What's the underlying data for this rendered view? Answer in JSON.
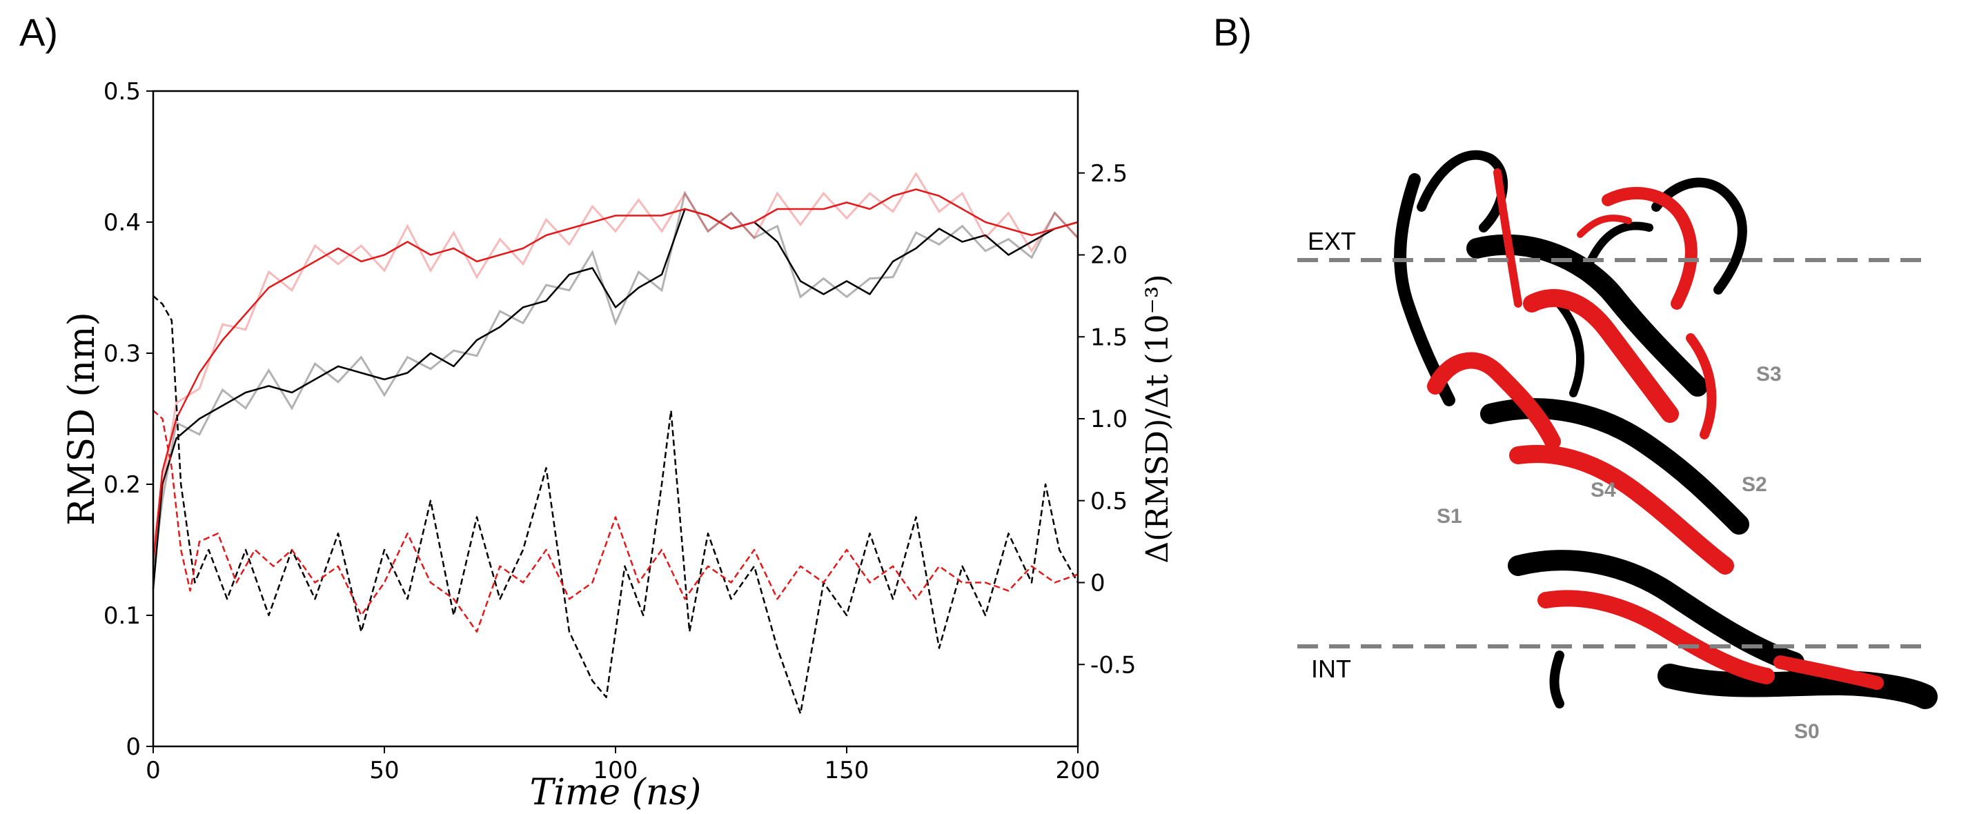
{
  "panels": {
    "a_label": "A)",
    "b_label": "B)"
  },
  "chart_data": {
    "type": "line",
    "xlabel": "Time (ns)",
    "ylabel_left": "RMSD (nm)",
    "ylabel_right": "Δ(RMSD)/Δt (10⁻³)",
    "xlim": [
      0,
      200
    ],
    "ylim_left": [
      0,
      0.5
    ],
    "ylim_right": [
      -1.0,
      3.0
    ],
    "xticks": [
      "0",
      "50",
      "100",
      "150",
      "200"
    ],
    "yticks_left": [
      "0",
      "0.1",
      "0.2",
      "0.3",
      "0.4",
      "0.5"
    ],
    "yticks_right": [
      "-0.5",
      "0",
      "0.5",
      "1.0",
      "1.5",
      "2.0",
      "2.5"
    ],
    "colors": {
      "black_series": "#000000",
      "red_series": "#e31a1c"
    },
    "series": [
      {
        "name": "RMSD (black)",
        "axis": "left",
        "style": "solid",
        "x": [
          0,
          2,
          5,
          10,
          15,
          20,
          25,
          30,
          35,
          40,
          45,
          50,
          55,
          60,
          65,
          70,
          75,
          80,
          85,
          90,
          95,
          100,
          105,
          110,
          115,
          120,
          125,
          130,
          135,
          140,
          145,
          150,
          155,
          160,
          165,
          170,
          175,
          180,
          185,
          190,
          195,
          200
        ],
        "y": [
          0.12,
          0.2,
          0.235,
          0.25,
          0.26,
          0.27,
          0.275,
          0.27,
          0.28,
          0.29,
          0.285,
          0.28,
          0.285,
          0.3,
          0.29,
          0.31,
          0.32,
          0.335,
          0.34,
          0.36,
          0.365,
          0.335,
          0.35,
          0.36,
          0.41,
          0.405,
          0.395,
          0.4,
          0.385,
          0.355,
          0.345,
          0.355,
          0.345,
          0.37,
          0.38,
          0.395,
          0.385,
          0.39,
          0.375,
          0.385,
          0.395,
          0.4
        ]
      },
      {
        "name": "RMSD (red)",
        "axis": "left",
        "style": "solid",
        "x": [
          0,
          2,
          5,
          10,
          15,
          20,
          25,
          30,
          35,
          40,
          45,
          50,
          55,
          60,
          65,
          70,
          75,
          80,
          85,
          90,
          95,
          100,
          105,
          110,
          115,
          120,
          125,
          130,
          135,
          140,
          145,
          150,
          155,
          160,
          165,
          170,
          175,
          180,
          185,
          190,
          195,
          200
        ],
        "y": [
          0.14,
          0.21,
          0.25,
          0.285,
          0.31,
          0.33,
          0.35,
          0.36,
          0.37,
          0.38,
          0.37,
          0.375,
          0.385,
          0.375,
          0.38,
          0.37,
          0.375,
          0.38,
          0.39,
          0.395,
          0.4,
          0.405,
          0.405,
          0.405,
          0.41,
          0.405,
          0.395,
          0.4,
          0.41,
          0.41,
          0.41,
          0.415,
          0.41,
          0.42,
          0.425,
          0.42,
          0.41,
          0.4,
          0.395,
          0.39,
          0.395,
          0.4
        ]
      },
      {
        "name": "Derivative (black)",
        "axis": "right",
        "style": "dashed",
        "x": [
          0,
          2,
          4,
          6,
          9,
          12,
          16,
          20,
          25,
          30,
          35,
          40,
          45,
          50,
          55,
          60,
          65,
          70,
          75,
          80,
          85,
          90,
          95,
          98,
          102,
          106,
          110,
          112,
          116,
          120,
          125,
          130,
          135,
          140,
          145,
          150,
          155,
          160,
          165,
          170,
          175,
          180,
          185,
          190,
          193,
          196,
          200
        ],
        "y": [
          1.75,
          1.7,
          1.6,
          0.6,
          0.0,
          0.2,
          -0.1,
          0.2,
          -0.2,
          0.2,
          -0.1,
          0.3,
          -0.3,
          0.2,
          -0.1,
          0.5,
          -0.2,
          0.4,
          -0.1,
          0.2,
          0.7,
          -0.3,
          -0.6,
          -0.7,
          0.1,
          -0.2,
          0.6,
          1.05,
          -0.3,
          0.3,
          -0.1,
          0.1,
          -0.4,
          -0.8,
          0.0,
          -0.2,
          0.3,
          -0.1,
          0.4,
          -0.4,
          0.1,
          -0.2,
          0.3,
          0.0,
          0.6,
          0.2,
          0.0
        ]
      },
      {
        "name": "Derivative (red)",
        "axis": "right",
        "style": "dashed",
        "x": [
          0,
          2,
          4,
          6,
          8,
          10,
          14,
          18,
          22,
          26,
          30,
          35,
          40,
          45,
          50,
          55,
          60,
          65,
          70,
          75,
          80,
          85,
          90,
          95,
          100,
          105,
          110,
          115,
          120,
          125,
          130,
          135,
          140,
          145,
          150,
          155,
          160,
          165,
          170,
          175,
          180,
          185,
          190,
          195,
          200
        ],
        "y": [
          1.05,
          1.0,
          0.7,
          0.2,
          -0.05,
          0.25,
          0.3,
          0.0,
          0.2,
          0.1,
          0.2,
          0.0,
          0.1,
          -0.2,
          0.0,
          0.3,
          0.0,
          -0.1,
          -0.3,
          0.1,
          0.0,
          0.2,
          -0.1,
          0.0,
          0.4,
          0.0,
          0.2,
          -0.1,
          0.1,
          0.0,
          0.2,
          -0.1,
          0.1,
          0.0,
          0.2,
          0.0,
          0.1,
          -0.1,
          0.1,
          0.0,
          0.0,
          -0.05,
          0.1,
          0.0,
          0.05
        ]
      }
    ]
  },
  "structure": {
    "membrane_labels": {
      "ext": "EXT",
      "int": "INT"
    },
    "segment_labels": [
      "S0",
      "S1",
      "S2",
      "S3",
      "S4"
    ],
    "colors": {
      "membrane_line": "#808080",
      "helix_a": "#e31a1c",
      "helix_b": "#000000"
    }
  }
}
